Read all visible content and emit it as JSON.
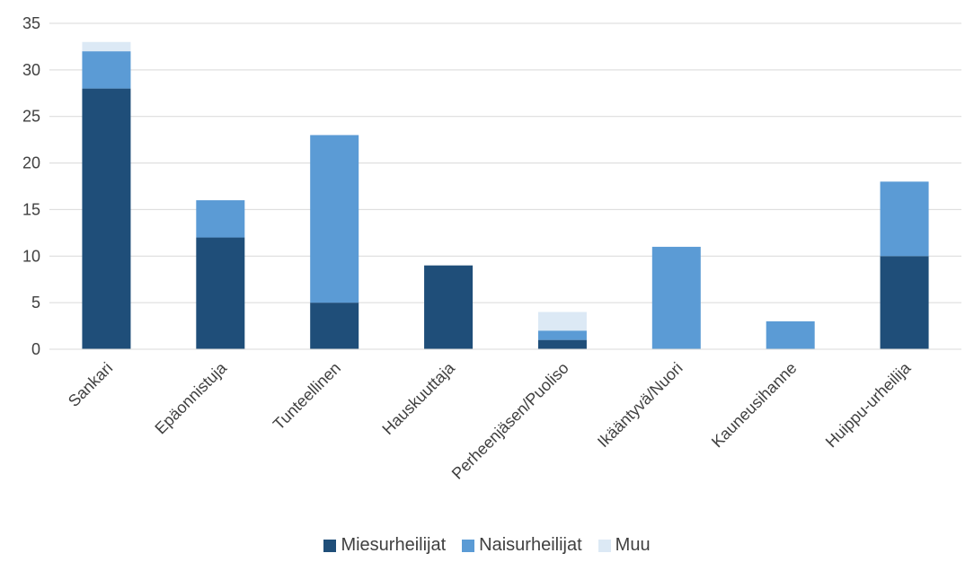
{
  "chart_data": {
    "type": "bar",
    "stacked": true,
    "categories": [
      "Sankari",
      "Epäonnistuja",
      "Tunteellinen",
      "Hauskuuttaja",
      "Perheenjäsen/Puoliso",
      "Ikääntyvä/Nuori",
      "Kauneusihanne",
      "Huippu-urheilija"
    ],
    "series": [
      {
        "name": "Miesurheilijat",
        "values": [
          28,
          12,
          5,
          9,
          1,
          0,
          0,
          10
        ],
        "color": "#1f4e79"
      },
      {
        "name": "Naisurheilijat",
        "values": [
          4,
          4,
          18,
          0,
          1,
          11,
          3,
          8
        ],
        "color": "#5b9bd5"
      },
      {
        "name": "Muu",
        "values": [
          1,
          0,
          0,
          0,
          2,
          0,
          0,
          0
        ],
        "color": "#dce9f5"
      }
    ],
    "ylim": [
      0,
      35
    ],
    "yticks": [
      0,
      5,
      10,
      15,
      20,
      25,
      30,
      35
    ],
    "grid": true,
    "legend_position": "bottom",
    "title": "",
    "xlabel": "",
    "ylabel": ""
  }
}
